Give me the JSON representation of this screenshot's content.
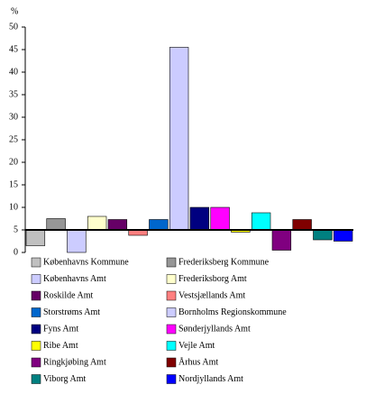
{
  "chart_data": {
    "type": "bar",
    "y_label": "%",
    "categories": [
      "Københavns Kommune",
      "Frederiksberg Kommune",
      "Københavns Amt",
      "Frederiksborg Amt",
      "Roskilde Amt",
      "Vestsjællands Amt",
      "Storstrøms Amt",
      "Bornholms Regionskommune",
      "Fyns Amt",
      "Sønderjyllands Amt",
      "Ribe Amt",
      "Vejle Amt",
      "Ringkjøbing Amt",
      "Århus Amt",
      "Viborg Amt",
      "Nordjyllands Amt"
    ],
    "values": [
      1.5,
      7.5,
      0,
      8,
      7.3,
      3.8,
      7.3,
      45.5,
      10,
      10,
      4.5,
      8.8,
      0.5,
      7.3,
      2.8,
      2.5
    ],
    "colors": [
      "#c0c0c0",
      "#969696",
      "#ccccff",
      "#ffffcc",
      "#660066",
      "#ff8080",
      "#0066cc",
      "#ccccff",
      "#000080",
      "#ff00ff",
      "#ffff00",
      "#00ffff",
      "#800080",
      "#800000",
      "#008080",
      "#0000ff"
    ],
    "baseline": 5,
    "ylim": [
      0,
      50
    ],
    "yticks": [
      0,
      5,
      10,
      15,
      20,
      25,
      30,
      35,
      40,
      45,
      50
    ],
    "grid": false,
    "legend": "bottom"
  }
}
